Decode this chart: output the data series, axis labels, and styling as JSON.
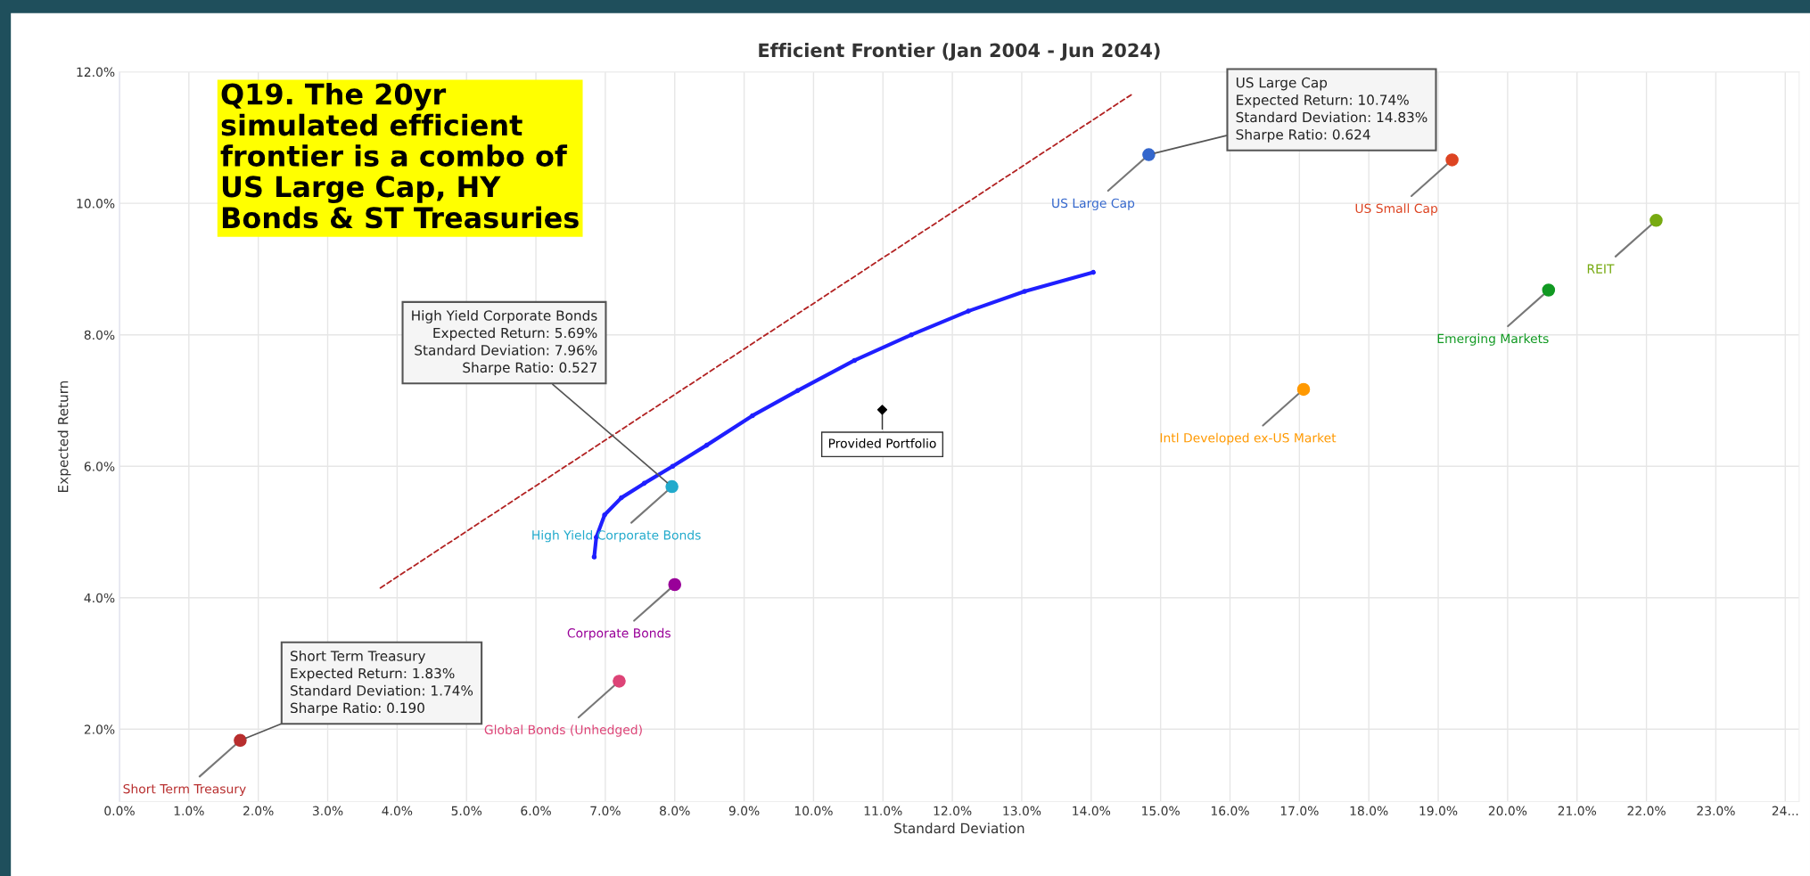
{
  "chart_data": {
    "type": "scatter",
    "title": "Efficient Frontier (Jan 2004 - Jun 2024)",
    "xlabel": "Standard Deviation",
    "ylabel": "Expected Return",
    "xlim": [
      0,
      24.2
    ],
    "ylim": [
      0.9,
      12.0
    ],
    "xticks": [
      {
        "value": 0,
        "label": "0.0%"
      },
      {
        "value": 1,
        "label": "1.0%"
      },
      {
        "value": 2,
        "label": "2.0%"
      },
      {
        "value": 3,
        "label": "3.0%"
      },
      {
        "value": 4,
        "label": "4.0%"
      },
      {
        "value": 5,
        "label": "5.0%"
      },
      {
        "value": 6,
        "label": "6.0%"
      },
      {
        "value": 7,
        "label": "7.0%"
      },
      {
        "value": 8,
        "label": "8.0%"
      },
      {
        "value": 9,
        "label": "9.0%"
      },
      {
        "value": 10,
        "label": "10.0%"
      },
      {
        "value": 11,
        "label": "11.0%"
      },
      {
        "value": 12,
        "label": "12.0%"
      },
      {
        "value": 13,
        "label": "13.0%"
      },
      {
        "value": 14,
        "label": "14.0%"
      },
      {
        "value": 15,
        "label": "15.0%"
      },
      {
        "value": 16,
        "label": "16.0%"
      },
      {
        "value": 17,
        "label": "17.0%"
      },
      {
        "value": 18,
        "label": "18.0%"
      },
      {
        "value": 19,
        "label": "19.0%"
      },
      {
        "value": 20,
        "label": "20.0%"
      },
      {
        "value": 21,
        "label": "21.0%"
      },
      {
        "value": 22,
        "label": "22.0%"
      },
      {
        "value": 23,
        "label": "23.0%"
      },
      {
        "value": 24,
        "label": "24..."
      }
    ],
    "yticks": [
      {
        "value": 2,
        "label": "2.0%"
      },
      {
        "value": 4,
        "label": "4.0%"
      },
      {
        "value": 6,
        "label": "6.0%"
      },
      {
        "value": 8,
        "label": "8.0%"
      },
      {
        "value": 10,
        "label": "10.0%"
      },
      {
        "value": 12,
        "label": "12.0%"
      }
    ],
    "grid": true,
    "marker": "circle",
    "series": [
      {
        "type": "line",
        "color": "#1f1fff",
        "marker": "circle",
        "x": [
          6.84,
          6.87,
          6.99,
          7.23,
          7.56,
          7.97,
          8.46,
          9.12,
          9.77,
          10.59,
          11.41,
          12.23,
          13.04,
          14.03
        ],
        "values": [
          4.62,
          4.92,
          5.26,
          5.52,
          5.74,
          6.0,
          6.32,
          6.77,
          7.15,
          7.61,
          8.0,
          8.36,
          8.66,
          8.95
        ]
      },
      {
        "type": "line",
        "color": "#b22222",
        "marker": "none",
        "line_style": "dashed",
        "x": [
          3.76,
          14.59
        ],
        "values": [
          4.15,
          11.66
        ]
      },
      {
        "name": "US Large Cap",
        "color": "#3366cc",
        "x": [
          14.83
        ],
        "values": [
          10.74
        ]
      },
      {
        "name": "US Small Cap",
        "color": "#dd4422",
        "x": [
          19.2
        ],
        "values": [
          10.66
        ]
      },
      {
        "name": "REIT",
        "color": "#77aa11",
        "x": [
          22.14
        ],
        "values": [
          9.74
        ]
      },
      {
        "name": "Emerging Markets",
        "color": "#119922",
        "x": [
          20.59
        ],
        "values": [
          8.68
        ]
      },
      {
        "name": "Intl Developed ex-US Market",
        "color": "#ff9900",
        "x": [
          17.06
        ],
        "values": [
          7.17
        ]
      },
      {
        "name": "Provided Portfolio",
        "color": "#000000",
        "marker": "diamond",
        "x": [
          10.99
        ],
        "values": [
          6.86
        ]
      },
      {
        "name": "High Yield Corporate Bonds",
        "color": "#22aacc",
        "x": [
          7.96
        ],
        "values": [
          5.69
        ]
      },
      {
        "name": "Corporate Bonds",
        "color": "#990099",
        "x": [
          8.0
        ],
        "values": [
          4.2
        ]
      },
      {
        "name": "Global Bonds (Unhedged)",
        "color": "#dd4477",
        "x": [
          7.2
        ],
        "values": [
          2.73
        ]
      },
      {
        "name": "Short Term Treasury",
        "color": "#b82e2e",
        "x": [
          1.74
        ],
        "values": [
          1.83
        ]
      }
    ],
    "annotations": [
      "Q19. The 20yr \nsimulated efficient \nfrontier is a combo of\nUS Large Cap, HY \nBonds & ST Treasuries",
      {
        "text": "US Large Cap\nExpected Return: 10.74%\nStandard Deviation: 14.83%\nSharpe Ratio: 0.624",
        "x": 14.83,
        "y": 10.74
      },
      {
        "text": "High Yield Corporate Bonds\nExpected Return: 5.69%\nStandard Deviation: 7.96%\nSharpe Ratio: 0.527",
        "x": 7.96,
        "y": 5.69
      },
      {
        "text": "Short Term Treasury\nExpected Return: 1.83%\nStandard Deviation: 1.74%\nSharpe Ratio: 0.190",
        "x": 1.74,
        "y": 1.83
      }
    ]
  }
}
